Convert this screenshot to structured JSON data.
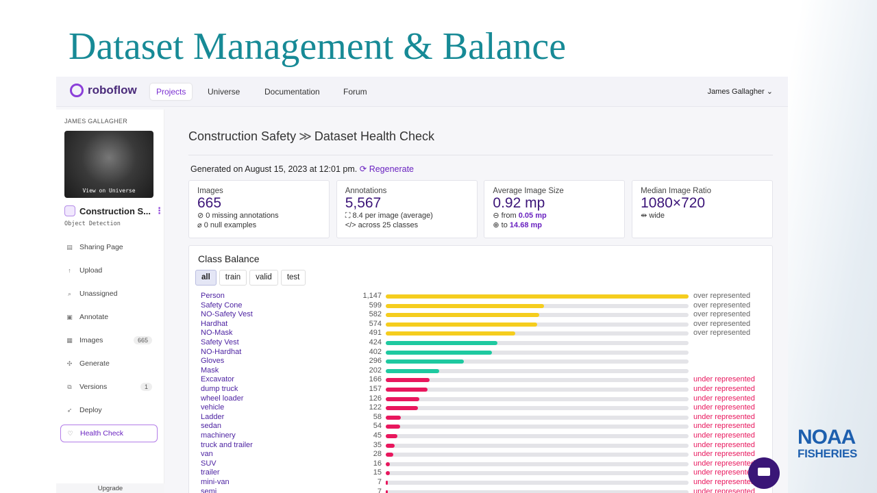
{
  "slide": {
    "title": "Dataset Management & Balance",
    "logo": {
      "line1": "NOAA",
      "line2": "FISHERIES"
    }
  },
  "navbar": {
    "brand": "roboflow",
    "items": [
      "Projects",
      "Universe",
      "Documentation",
      "Forum"
    ],
    "selected": 0,
    "user": "James Gallagher"
  },
  "sidebar": {
    "workspace": "JAMES GALLAGHER",
    "thumbnail_label": "View on Universe",
    "project": "Construction S...",
    "project_type": "Object Detection",
    "menu": [
      {
        "label": "Sharing Page"
      },
      {
        "label": "Upload"
      },
      {
        "label": "Unassigned"
      },
      {
        "label": "Annotate"
      },
      {
        "label": "Images",
        "badge": 665
      },
      {
        "label": "Generate"
      },
      {
        "label": "Versions",
        "badge": 1
      },
      {
        "label": "Deploy"
      },
      {
        "label": "Health Check"
      }
    ],
    "selected": 8,
    "upgrade": "Upgrade"
  },
  "main": {
    "breadcrumb": [
      "Construction Safety",
      "Dataset Health Check"
    ],
    "generated": "Generated on August 15, 2023 at 12:01 pm.",
    "regenerate": "Regenerate",
    "cards": [
      {
        "label": "Images",
        "value": 665,
        "details": [
          {
            "text": "0 missing annotations"
          },
          {
            "text": "0 null examples"
          }
        ]
      },
      {
        "label": "Annotations",
        "value": "5,567",
        "details": [
          {
            "text": "8.4 per image (average)"
          },
          {
            "text": "across 25 classes"
          }
        ]
      },
      {
        "label": "Average Image Size",
        "value": "0.92 mp",
        "details": [
          {
            "text": "from",
            "strong": "0.05 mp"
          },
          {
            "text": "to",
            "strong": "14.68 mp"
          }
        ]
      },
      {
        "label": "Median Image Ratio",
        "value": "1080×720",
        "details": [
          {
            "text": "wide"
          }
        ]
      }
    ],
    "class_balance": {
      "title": "Class Balance",
      "tabs": [
        "all",
        "train",
        "valid",
        "test"
      ],
      "selected_tab": 0,
      "groups": [
        {
          "status": "over represented",
          "bar_color": "#f5cd1e",
          "status_color": "#666666",
          "classes": [
            {
              "name": "Person",
              "value": 1147,
              "value_label": "1,147"
            },
            {
              "name": "Safety Cone",
              "value": 599
            },
            {
              "name": "NO-Safety Vest",
              "value": 582
            },
            {
              "name": "Hardhat",
              "value": 574
            },
            {
              "name": "NO-Mask",
              "value": 491
            }
          ]
        },
        {
          "bar_color": "#1ec9a0",
          "classes": [
            {
              "name": "Safety Vest",
              "value": 424
            },
            {
              "name": "NO-Hardhat",
              "value": 402
            },
            {
              "name": "Gloves",
              "value": 296
            },
            {
              "name": "Mask",
              "value": 202
            }
          ]
        },
        {
          "status": "under represented",
          "bar_color": "#e8175d",
          "status_color": "#e8175d",
          "classes": [
            {
              "name": "Excavator",
              "value": 166
            },
            {
              "name": "dump truck",
              "value": 157
            },
            {
              "name": "wheel loader",
              "value": 126
            },
            {
              "name": "vehicle",
              "value": 122
            },
            {
              "name": "Ladder",
              "value": 58
            },
            {
              "name": "sedan",
              "value": 54
            },
            {
              "name": "machinery",
              "value": 45
            },
            {
              "name": "truck and trailer",
              "value": 35
            },
            {
              "name": "van",
              "value": 28
            },
            {
              "name": "SUV",
              "value": 16
            },
            {
              "name": "trailer",
              "value": 15
            },
            {
              "name": "mini-van",
              "value": 7
            },
            {
              "name": "semi",
              "value": 7
            }
          ]
        }
      ]
    }
  }
}
